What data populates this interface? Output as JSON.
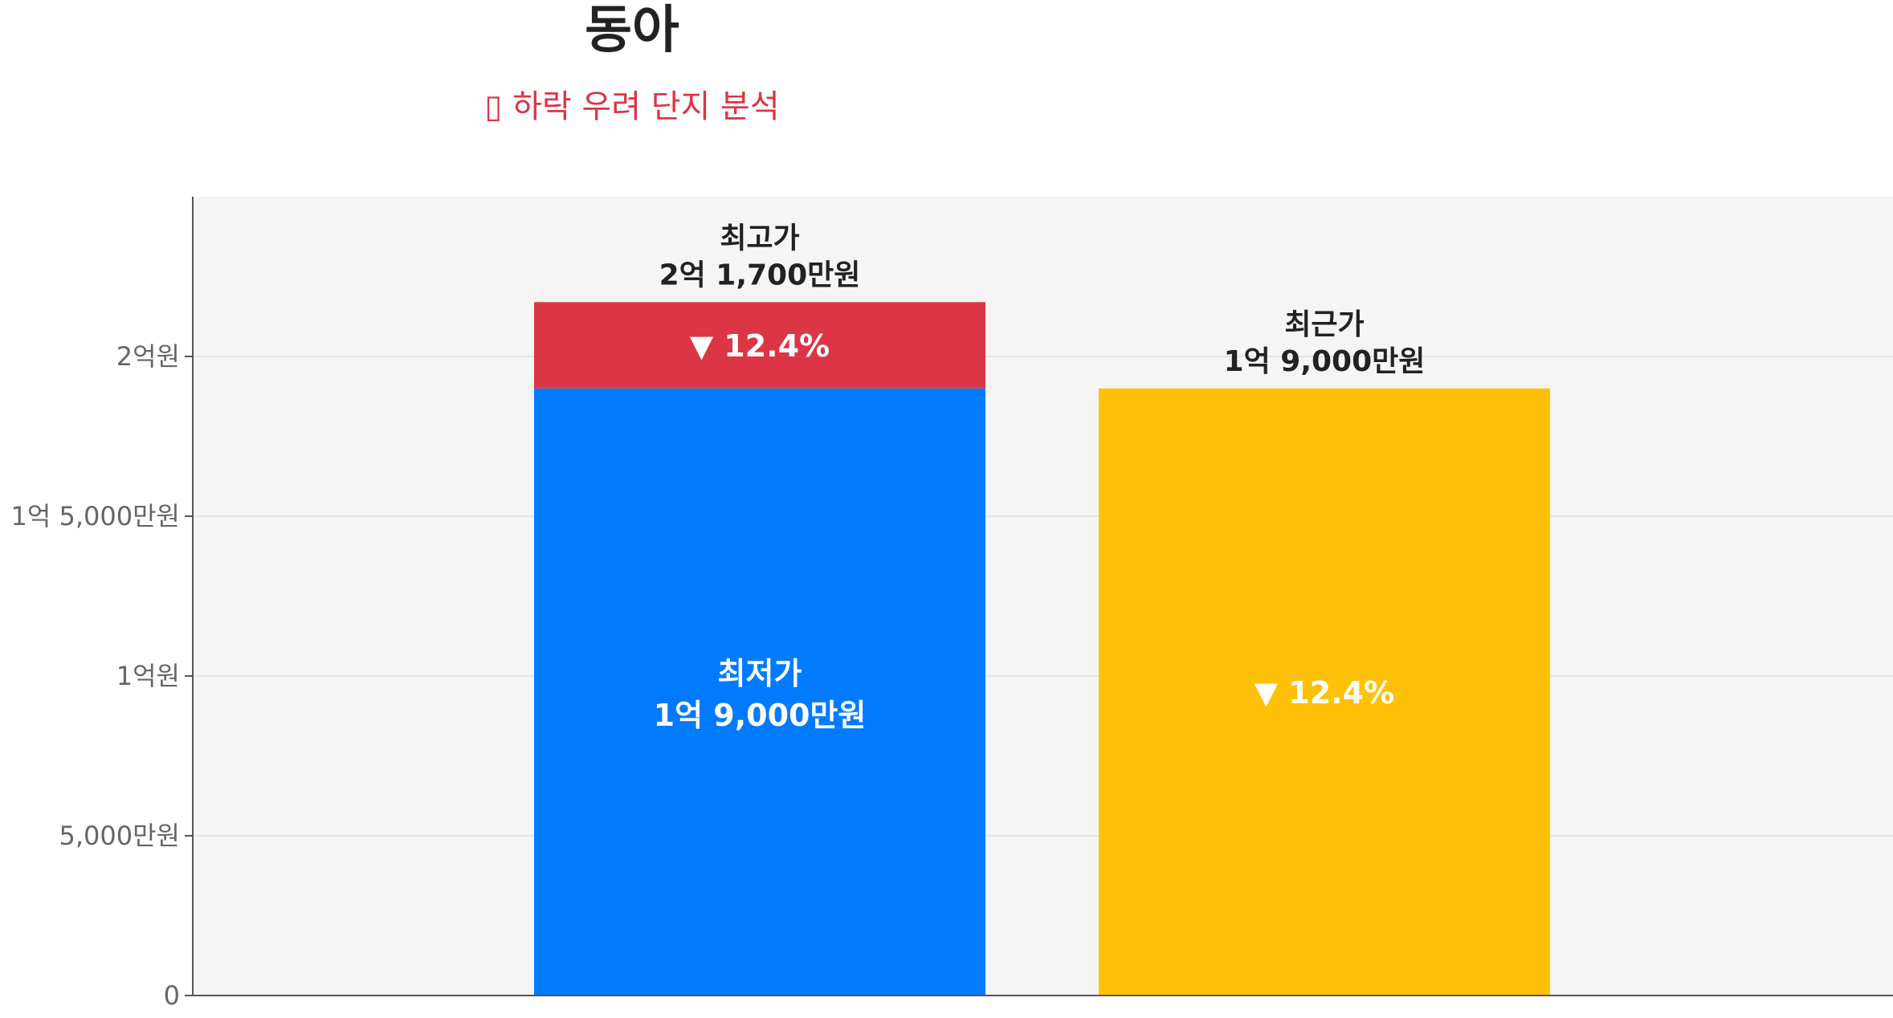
{
  "title": "동아",
  "subtitle": "▯ 하락 우려 단지 분석",
  "colors": {
    "plot_bg": "#f5f5f5",
    "low": "#007bff",
    "gap": "#dc3545",
    "recent": "#ffc107",
    "axis": "#555555",
    "grid": "#e6e6e6"
  },
  "chart_data": {
    "type": "bar",
    "unit": "만원",
    "ylim": [
      0,
      25000
    ],
    "y_ticks": [
      {
        "value": 0,
        "label": "0"
      },
      {
        "value": 5000,
        "label": "5,000만원"
      },
      {
        "value": 10000,
        "label": "1억원"
      },
      {
        "value": 15000,
        "label": "1억 5,000만원"
      },
      {
        "value": 20000,
        "label": "2억원"
      }
    ],
    "grid": true,
    "bars": [
      {
        "key": "high-low",
        "segments": [
          {
            "key": "low",
            "value": 19000,
            "label": "최저가",
            "value_label": "1억 9,000만원"
          },
          {
            "key": "gap",
            "value": 2700,
            "label": "▼ 12.4%"
          }
        ],
        "top_label": "최고가",
        "top_value_label": "2억 1,700만원",
        "total": 21700
      },
      {
        "key": "recent",
        "segments": [
          {
            "key": "recent",
            "value": 19000,
            "label": "▼ 12.4%"
          }
        ],
        "top_label": "최근가",
        "top_value_label": "1억 9,000만원",
        "total": 19000
      }
    ]
  }
}
